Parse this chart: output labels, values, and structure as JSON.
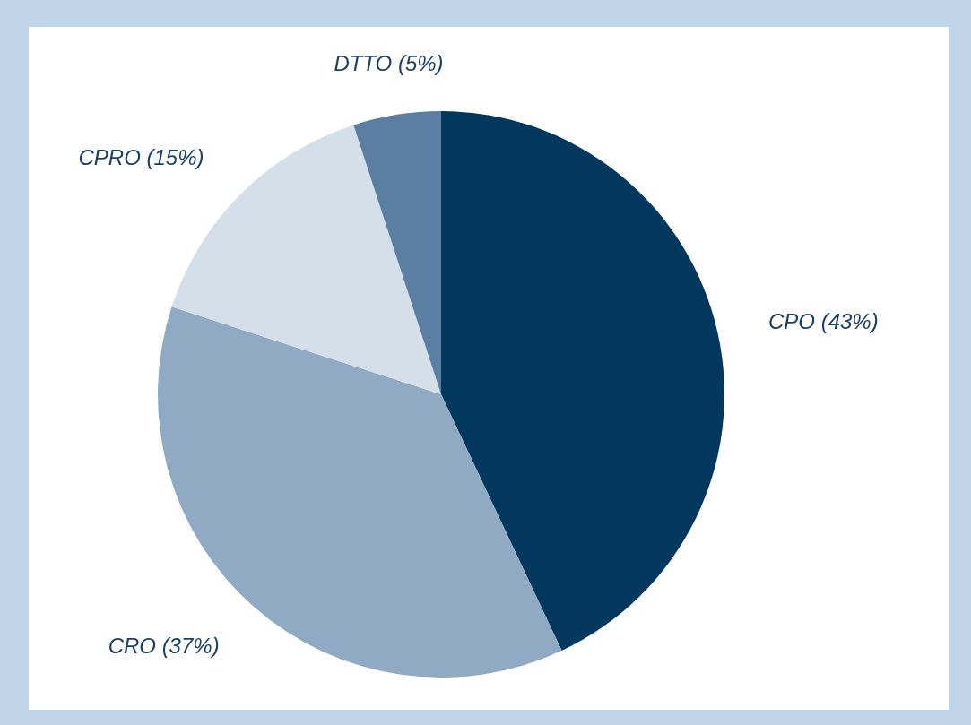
{
  "chart_data": {
    "type": "pie",
    "categories": [
      "CPO",
      "CRO",
      "CPRO",
      "DTTO"
    ],
    "values": [
      43,
      37,
      15,
      5
    ],
    "colors": [
      "#02375e",
      "#90aac4",
      "#d5dfea",
      "#5a7fa3"
    ],
    "value_labels": [
      "(43%)",
      "(37%)",
      "(15%)",
      "(5%)"
    ],
    "legend": false
  }
}
